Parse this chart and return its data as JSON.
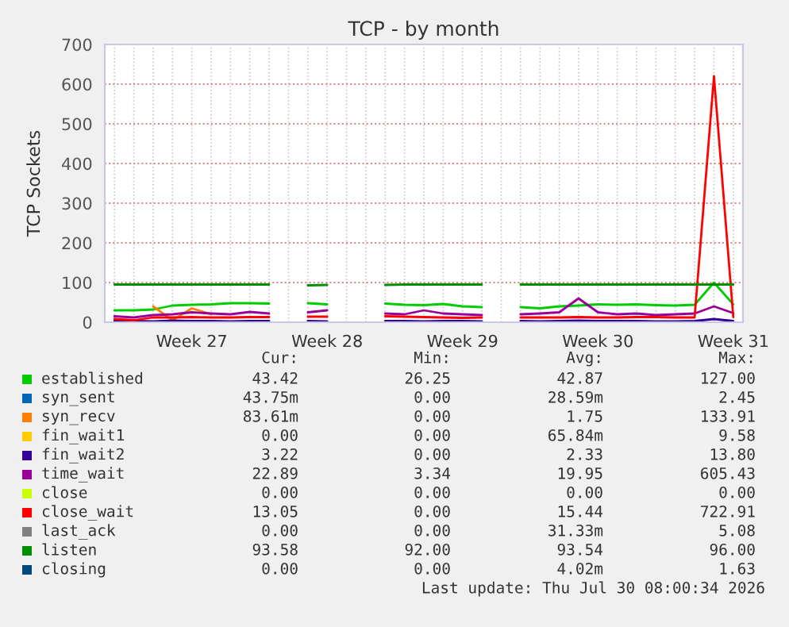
{
  "chart_data": {
    "type": "line",
    "title": "TCP - by month",
    "ylabel": "TCP Sockets",
    "categories": [
      null,
      null,
      null,
      null,
      "Week 27",
      null,
      null,
      null,
      null,
      null,
      null,
      "Week 28",
      null,
      null,
      null,
      null,
      null,
      null,
      "Week 29",
      null,
      null,
      null,
      null,
      null,
      null,
      "Week 30",
      null,
      null,
      null,
      null,
      null,
      null,
      "Week 31"
    ],
    "ylim": [
      0,
      700
    ],
    "yticks": [
      0,
      100,
      200,
      300,
      400,
      500,
      600,
      700
    ],
    "grid": true,
    "legend": "bottom",
    "line_style": "solid",
    "marker": "none",
    "series": [
      {
        "name": "established",
        "color": "#00cc00",
        "values": [
          30,
          30,
          32,
          42,
          44,
          45,
          48,
          48,
          47,
          null,
          48,
          45,
          null,
          null,
          47,
          44,
          43,
          46,
          40,
          38,
          null,
          38,
          35,
          40,
          42,
          45,
          44,
          45,
          43,
          42,
          44,
          100,
          45
        ]
      },
      {
        "name": "syn_sent",
        "color": "#0066b3",
        "values": [
          null,
          null,
          null,
          null,
          null,
          null,
          null,
          null,
          null,
          null,
          null,
          null,
          null,
          null,
          null,
          null,
          null,
          null,
          null,
          null,
          null,
          null,
          null,
          null,
          null,
          null,
          null,
          null,
          null,
          null,
          null,
          null,
          null
        ]
      },
      {
        "name": "syn_recv",
        "color": "#ff8000",
        "values": [
          null,
          null,
          40,
          5,
          35,
          20,
          null,
          null,
          null,
          null,
          null,
          null,
          null,
          null,
          null,
          null,
          null,
          null,
          null,
          null,
          null,
          null,
          null,
          null,
          null,
          null,
          null,
          null,
          null,
          null,
          null,
          null,
          null
        ]
      },
      {
        "name": "fin_wait1",
        "color": "#ffcc00",
        "values": [
          null,
          null,
          null,
          null,
          null,
          null,
          null,
          null,
          null,
          null,
          null,
          null,
          null,
          null,
          null,
          null,
          null,
          null,
          null,
          null,
          null,
          null,
          null,
          null,
          null,
          null,
          null,
          null,
          null,
          null,
          null,
          null,
          null
        ]
      },
      {
        "name": "fin_wait2",
        "color": "#330099",
        "values": [
          3,
          3,
          2,
          4,
          3,
          3,
          2,
          3,
          3,
          null,
          3,
          2,
          null,
          null,
          3,
          3,
          2,
          3,
          3,
          2,
          null,
          3,
          2,
          3,
          4,
          3,
          3,
          3,
          2,
          2,
          3,
          8,
          3
        ]
      },
      {
        "name": "time_wait",
        "color": "#990099",
        "values": [
          15,
          12,
          18,
          20,
          25,
          22,
          20,
          26,
          22,
          null,
          25,
          30,
          null,
          null,
          22,
          20,
          30,
          22,
          20,
          18,
          null,
          20,
          22,
          25,
          60,
          25,
          20,
          22,
          18,
          20,
          22,
          40,
          23
        ]
      },
      {
        "name": "close",
        "color": "#ccff00",
        "values": [
          null,
          null,
          null,
          null,
          null,
          null,
          null,
          null,
          null,
          null,
          null,
          null,
          null,
          null,
          null,
          null,
          null,
          null,
          null,
          null,
          null,
          null,
          null,
          null,
          null,
          null,
          null,
          null,
          null,
          null,
          null,
          null,
          null
        ]
      },
      {
        "name": "close_wait",
        "color": "#ff0000",
        "values": [
          8,
          5,
          12,
          12,
          13,
          12,
          12,
          13,
          13,
          null,
          14,
          14,
          null,
          null,
          15,
          14,
          13,
          12,
          11,
          12,
          null,
          12,
          12,
          12,
          13,
          12,
          12,
          13,
          13,
          12,
          12,
          620,
          13
        ]
      },
      {
        "name": "last_ack",
        "color": "#808080",
        "values": [
          null,
          null,
          null,
          null,
          null,
          null,
          null,
          null,
          null,
          null,
          null,
          null,
          null,
          null,
          null,
          null,
          null,
          null,
          null,
          null,
          null,
          null,
          null,
          null,
          null,
          null,
          null,
          null,
          null,
          null,
          null,
          null,
          null
        ]
      },
      {
        "name": "listen",
        "color": "#008f00",
        "values": [
          95,
          95,
          95,
          95,
          95,
          95,
          95,
          95,
          95,
          null,
          93,
          94,
          null,
          null,
          94,
          95,
          95,
          95,
          95,
          95,
          null,
          95,
          95,
          95,
          95,
          95,
          95,
          95,
          95,
          95,
          95,
          95,
          95
        ]
      },
      {
        "name": "closing",
        "color": "#00487d",
        "values": [
          null,
          null,
          null,
          null,
          null,
          null,
          null,
          null,
          null,
          null,
          null,
          null,
          null,
          null,
          null,
          null,
          null,
          null,
          null,
          null,
          null,
          null,
          null,
          null,
          null,
          null,
          null,
          null,
          null,
          null,
          null,
          null,
          null
        ]
      }
    ],
    "annotations": [
      "Cur:",
      "Min:",
      "Avg:",
      "Max:",
      "43.42",
      "26.25",
      "42.87",
      "127.00",
      "43.75m",
      "0.00",
      "28.59m",
      "2.45",
      "83.61m",
      "0.00",
      "1.75",
      "133.91",
      "0.00",
      "0.00",
      "65.84m",
      "9.58",
      "3.22",
      "0.00",
      "2.33",
      "13.80",
      "22.89",
      "3.34",
      "19.95",
      "605.43",
      "0.00",
      "0.00",
      "0.00",
      "0.00",
      "13.05",
      "0.00",
      "15.44",
      "722.91",
      "0.00",
      "0.00",
      "31.33m",
      "5.08",
      "93.58",
      "92.00",
      "93.54",
      "96.00",
      "0.00",
      "0.00",
      "4.02m",
      "1.63",
      "Last update: Thu Jul 30 08:00:34 2026"
    ]
  }
}
